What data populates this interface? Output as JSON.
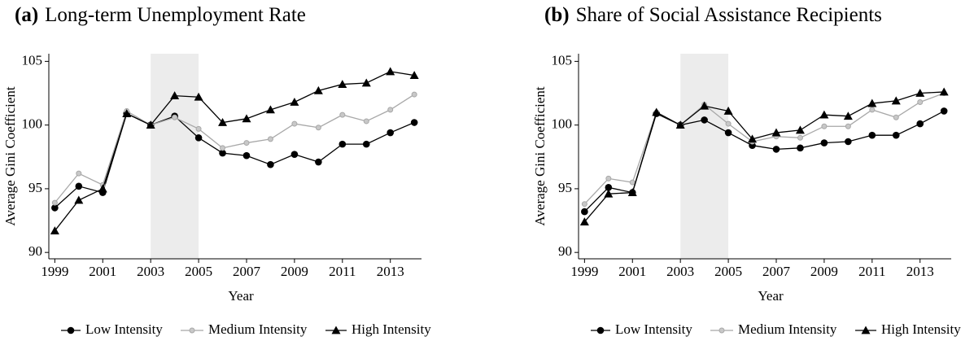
{
  "chart_data": [
    {
      "type": "line",
      "label": "(a)",
      "title": "Long-term Unemployment Rate",
      "x_label": "Year",
      "y_label": "Average Gini Coefficient",
      "x": [
        1999,
        2000,
        2001,
        2002,
        2003,
        2004,
        2005,
        2006,
        2007,
        2008,
        2009,
        2010,
        2011,
        2012,
        2013,
        2014
      ],
      "shade": [
        2003,
        2005
      ],
      "series": [
        {
          "name": "Low Intensity",
          "color": "#000000",
          "marker": "circle",
          "values": [
            93.5,
            95.2,
            94.7,
            100.9,
            100,
            100.7,
            99.0,
            97.8,
            97.6,
            96.9,
            97.7,
            97.1,
            98.5,
            98.5,
            99.4,
            100.2
          ]
        },
        {
          "name": "Medium Intensity",
          "color": "#a8a8a8",
          "marker": "small-circle",
          "values": [
            93.9,
            96.2,
            95.3,
            101.1,
            100,
            100.6,
            99.7,
            98.2,
            98.6,
            98.9,
            100.1,
            99.8,
            100.8,
            100.3,
            101.2,
            102.4
          ]
        },
        {
          "name": "High Intensity",
          "color": "#000000",
          "marker": "triangle",
          "values": [
            91.7,
            94.1,
            95.0,
            100.9,
            100,
            102.3,
            102.2,
            100.2,
            100.5,
            101.2,
            101.8,
            102.7,
            103.2,
            103.3,
            104.2,
            103.9
          ]
        }
      ],
      "xlim": [
        1998.75,
        2014.3
      ],
      "xticks": [
        1999,
        2001,
        2003,
        2005,
        2007,
        2009,
        2011,
        2013
      ],
      "ylim": [
        89.5,
        105.6
      ],
      "yticks": [
        90,
        95,
        100,
        105
      ]
    },
    {
      "type": "line",
      "label": "(b)",
      "title": "Share of Social Assistance Recipients",
      "x_label": "Year",
      "y_label": "Average Gini Coefficient",
      "x": [
        1999,
        2000,
        2001,
        2002,
        2003,
        2004,
        2005,
        2006,
        2007,
        2008,
        2009,
        2010,
        2011,
        2012,
        2013,
        2014
      ],
      "shade": [
        2003,
        2005
      ],
      "series": [
        {
          "name": "Low Intensity",
          "color": "#000000",
          "marker": "circle",
          "values": [
            93.2,
            95.1,
            94.7,
            100.9,
            100,
            100.4,
            99.4,
            98.4,
            98.1,
            98.2,
            98.6,
            98.7,
            99.2,
            99.2,
            100.1,
            101.1
          ]
        },
        {
          "name": "Medium Intensity",
          "color": "#a8a8a8",
          "marker": "small-circle",
          "values": [
            93.8,
            95.8,
            95.5,
            101.0,
            100,
            101.6,
            100.1,
            98.7,
            99.1,
            99.0,
            99.9,
            99.9,
            101.2,
            100.6,
            101.8,
            102.5
          ]
        },
        {
          "name": "High Intensity",
          "color": "#000000",
          "marker": "triangle",
          "values": [
            92.4,
            94.6,
            94.7,
            101.0,
            100,
            101.5,
            101.1,
            98.9,
            99.4,
            99.6,
            100.8,
            100.7,
            101.7,
            101.9,
            102.5,
            102.6
          ]
        }
      ],
      "xlim": [
        1998.75,
        2014.3
      ],
      "xticks": [
        1999,
        2001,
        2003,
        2005,
        2007,
        2009,
        2011,
        2013
      ],
      "ylim": [
        89.5,
        105.6
      ],
      "yticks": [
        90,
        95,
        100,
        105
      ]
    }
  ]
}
